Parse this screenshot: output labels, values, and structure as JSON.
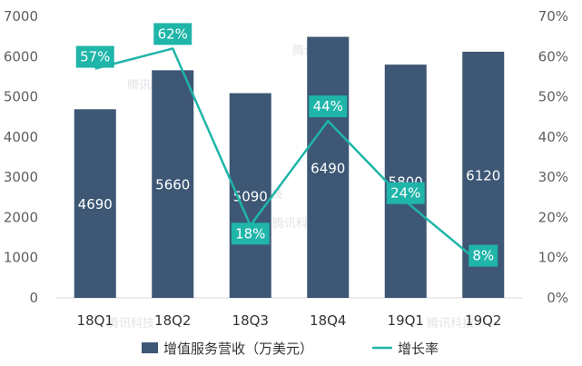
{
  "chart_data": {
    "type": "bar",
    "categories": [
      "18Q1",
      "18Q2",
      "18Q3",
      "18Q4",
      "19Q1",
      "19Q2"
    ],
    "series": [
      {
        "name": "增值服务营收（万美元）",
        "type": "bar",
        "axis": "left",
        "values": [
          4690,
          5660,
          5090,
          6490,
          5800,
          6120
        ],
        "labels": [
          "4690",
          "5660",
          "5090",
          "6490",
          "5800",
          "6120"
        ]
      },
      {
        "name": "增长率",
        "type": "line",
        "axis": "right",
        "values": [
          57,
          62,
          18,
          44,
          24,
          8
        ],
        "labels": [
          "57%",
          "62%",
          "18%",
          "44%",
          "24%",
          "8%"
        ]
      }
    ],
    "left_axis": {
      "ylim": [
        0,
        7000
      ],
      "ticks": [
        "0",
        "1000",
        "2000",
        "3000",
        "4000",
        "5000",
        "6000",
        "7000"
      ]
    },
    "right_axis": {
      "ylim": [
        0,
        70
      ],
      "unit": "%",
      "ticks": [
        "0%",
        "10%",
        "20%",
        "30%",
        "40%",
        "50%",
        "60%",
        "70%"
      ]
    },
    "legend": {
      "position": "bottom",
      "items": [
        {
          "label": "增值服务营收（万美元）",
          "marker": "bar"
        },
        {
          "label": "增长率",
          "marker": "line"
        }
      ]
    },
    "colors": {
      "bar": "#3d5775",
      "line": "#1fb5a9",
      "label_box": "#1fb5a9"
    },
    "watermark": "腾讯科技",
    "grid": false
  }
}
